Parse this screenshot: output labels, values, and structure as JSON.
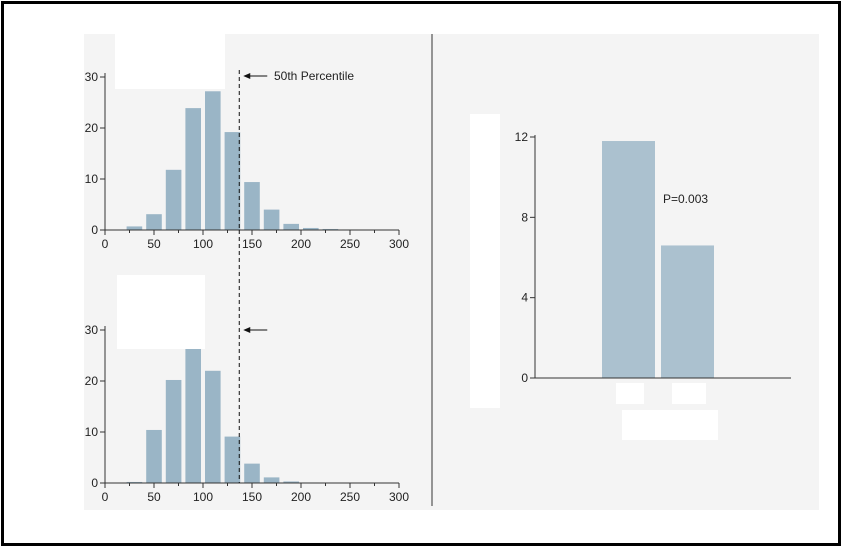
{
  "colors": {
    "bar": "#9ab5c6",
    "bar_right": "#abc1cf",
    "axis": "#333333",
    "panel": "#f4f4f4",
    "mask": "#ffffff"
  },
  "chart_data": [
    {
      "type": "bar",
      "bin_width": 20,
      "x": [
        30,
        50,
        70,
        90,
        110,
        130,
        150,
        170,
        190,
        210,
        230,
        250
      ],
      "values": [
        0.7,
        3.1,
        11.8,
        23.9,
        27.2,
        19.2,
        9.4,
        4.0,
        1.2,
        0.4,
        0.2,
        0.1
      ],
      "xlim": [
        0,
        300
      ],
      "ylim": [
        0,
        30
      ],
      "xticks": [
        0,
        50,
        100,
        150,
        200,
        250,
        300
      ],
      "yticks": [
        0,
        10,
        20,
        30
      ],
      "percentile_line": 137,
      "annotation": "50th Percentile"
    },
    {
      "type": "bar",
      "bin_width": 20,
      "x": [
        30,
        50,
        70,
        90,
        110,
        130,
        150,
        170,
        190,
        210,
        230,
        250
      ],
      "values": [
        0.2,
        10.4,
        20.2,
        32.8,
        22.0,
        9.1,
        3.8,
        1.1,
        0.3,
        0.1,
        0.0,
        0.0
      ],
      "xlim": [
        0,
        300
      ],
      "ylim": [
        0,
        30
      ],
      "xticks": [
        0,
        50,
        100,
        150,
        200,
        250,
        300
      ],
      "yticks": [
        0,
        10,
        20,
        30
      ],
      "percentile_line": 137
    },
    {
      "type": "bar",
      "values": [
        11.8,
        6.6
      ],
      "ylim": [
        0,
        12
      ],
      "yticks": [
        0,
        4,
        8,
        12
      ],
      "annotation": "P=0.003"
    }
  ]
}
